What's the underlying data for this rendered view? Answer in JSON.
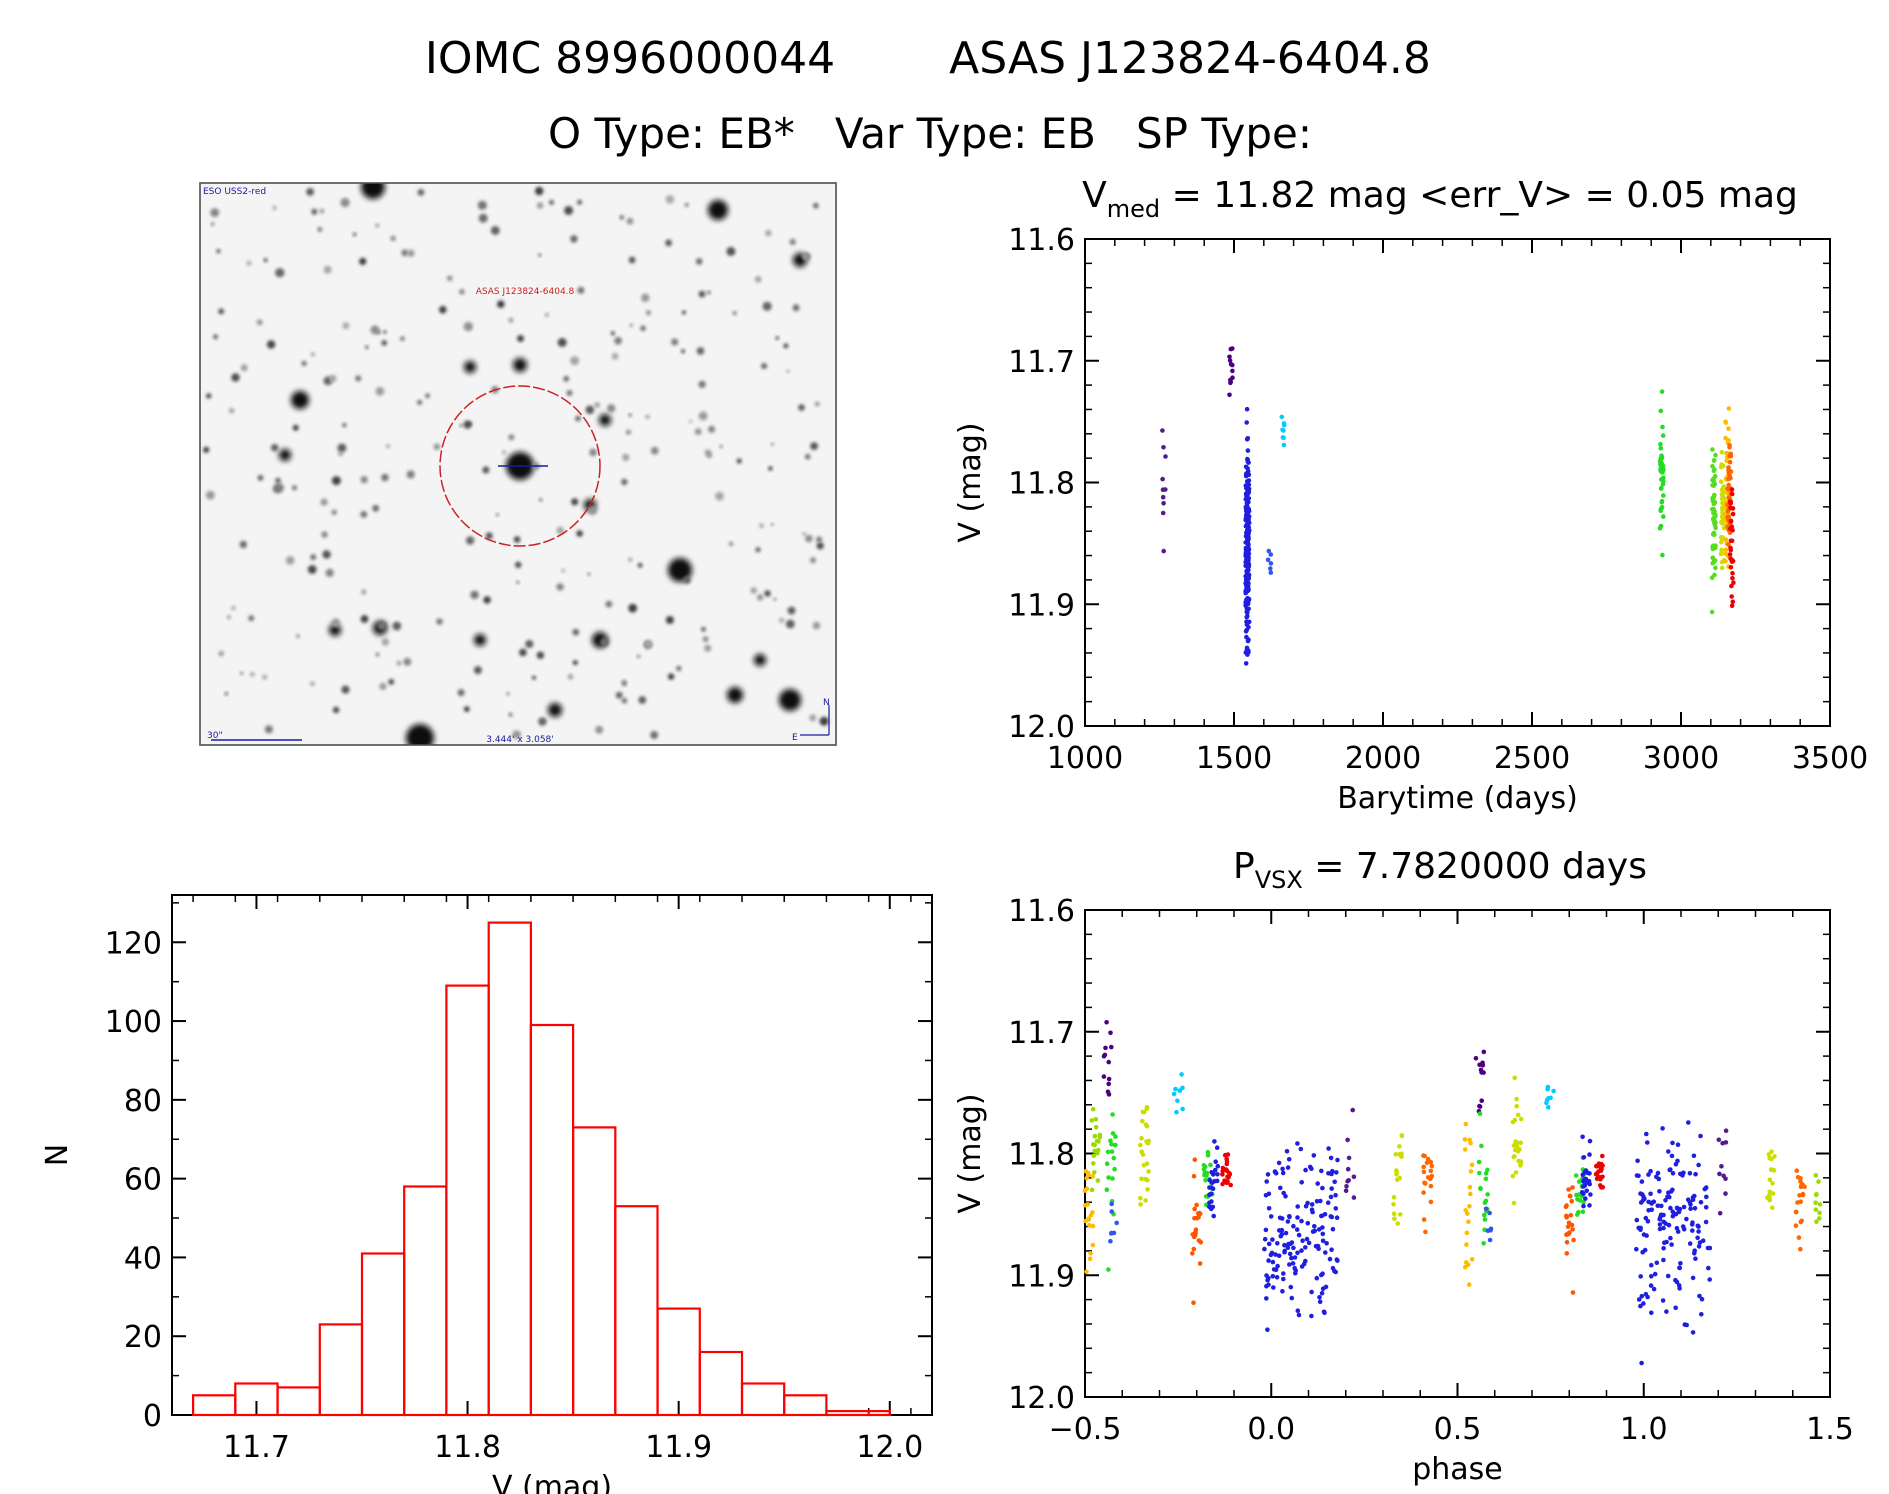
{
  "header": {
    "line1_left": "IOMC 8996000044",
    "line1_right": "ASAS J123824-6404.8",
    "line2": "O Type: EB*   Var Type: EB   SP Type:"
  },
  "image_panel": {
    "survey": "ESO USS2-red",
    "target_label": "ASAS J123824-6404.8",
    "scale_label": "30\"",
    "fov_label": "3.444' x 3.058'",
    "compass_n": "N",
    "compass_e": "E"
  },
  "colors": {
    "marker_circle": "#cc2222",
    "image_blue": "#1a1aa0",
    "hist": "#ff0000",
    "season_palette": [
      "#551a8b",
      "#4b0082",
      "#1f1fe0",
      "#00ccff",
      "#22dd22",
      "#99dd00",
      "#ffbb00",
      "#ff5500",
      "#ee0000"
    ]
  },
  "chart_data": [
    {
      "type": "scatter",
      "title": {
        "prefix": "V",
        "subscript": "med",
        "rest": " = 11.82 mag <err_V> = 0.05 mag"
      },
      "xlabel": "Barytime (days)",
      "ylabel": "V (mag)",
      "xlim": [
        1000,
        3500
      ],
      "ylim": [
        12.0,
        11.6
      ],
      "y_inverted": true,
      "xticks": [
        "1000",
        "1500",
        "2000",
        "2500",
        "3000",
        "3500"
      ],
      "yticks": [
        "11.6",
        "11.7",
        "11.8",
        "11.9",
        "12.0"
      ],
      "season_clusters": [
        {
          "x": 1265,
          "ymin": 11.72,
          "ymax": 11.89,
          "n": 10,
          "color": "#551a8b"
        },
        {
          "x": 1490,
          "ymin": 11.67,
          "ymax": 11.74,
          "n": 12,
          "color": "#4b0082"
        },
        {
          "x": 1545,
          "ymin": 11.73,
          "ymax": 11.98,
          "n": 220,
          "color": "#1f1fe0"
        },
        {
          "x": 1620,
          "ymin": 11.85,
          "ymax": 11.88,
          "n": 6,
          "color": "#3355ee"
        },
        {
          "x": 1665,
          "ymin": 11.73,
          "ymax": 11.78,
          "n": 8,
          "color": "#00ccff"
        },
        {
          "x": 2935,
          "ymin": 11.69,
          "ymax": 11.88,
          "n": 40,
          "color": "#22dd22"
        },
        {
          "x": 3110,
          "ymin": 11.72,
          "ymax": 11.92,
          "n": 60,
          "color": "#55dd22"
        },
        {
          "x": 3140,
          "ymin": 11.75,
          "ymax": 11.9,
          "n": 40,
          "color": "#ccdd00"
        },
        {
          "x": 3155,
          "ymin": 11.68,
          "ymax": 11.95,
          "n": 40,
          "color": "#ffbb00"
        },
        {
          "x": 3162,
          "ymin": 11.74,
          "ymax": 11.88,
          "n": 40,
          "color": "#ff6600"
        },
        {
          "x": 3170,
          "ymin": 11.78,
          "ymax": 11.92,
          "n": 30,
          "color": "#ee0000"
        }
      ]
    },
    {
      "type": "bar",
      "title": "",
      "xlabel": "V (mag)",
      "ylabel": "N",
      "xlim": [
        11.66,
        12.02
      ],
      "ylim": [
        0,
        132
      ],
      "xticks": [
        "11.7",
        "11.8",
        "11.9",
        "12.0"
      ],
      "yticks": [
        "0",
        "20",
        "40",
        "60",
        "80",
        "100",
        "120"
      ],
      "bin_edges": [
        11.67,
        11.69,
        11.71,
        11.73,
        11.75,
        11.77,
        11.79,
        11.81,
        11.83,
        11.85,
        11.87,
        11.89,
        11.91,
        11.93,
        11.95,
        11.97,
        11.99,
        12.0
      ],
      "values": [
        5,
        8,
        7,
        23,
        41,
        58,
        109,
        125,
        99,
        73,
        53,
        27,
        16,
        8,
        5,
        1,
        1
      ]
    },
    {
      "type": "scatter",
      "title": {
        "prefix": "P",
        "subscript": "VSX",
        "rest": " = 7.7820000 days"
      },
      "xlabel": "phase",
      "ylabel": "V (mag)",
      "xlim": [
        -0.5,
        1.5
      ],
      "ylim": [
        12.0,
        11.6
      ],
      "y_inverted": true,
      "period_days": 7.782,
      "xticks": [
        "−0.5",
        "0.0",
        "0.5",
        "1.0",
        "1.5"
      ],
      "yticks": [
        "11.6",
        "11.7",
        "11.8",
        "11.9",
        "12.0"
      ],
      "phase_clusters": [
        {
          "x": -0.49,
          "ymin": 11.73,
          "ymax": 11.95,
          "n": 20,
          "color": "#ffbb00"
        },
        {
          "x": -0.47,
          "ymin": 11.74,
          "ymax": 11.85,
          "n": 20,
          "color": "#99dd00"
        },
        {
          "x": -0.44,
          "ymin": 11.67,
          "ymax": 11.8,
          "n": 12,
          "color": "#4b0082"
        },
        {
          "x": -0.43,
          "ymin": 11.75,
          "ymax": 11.9,
          "n": 18,
          "color": "#22dd22"
        },
        {
          "x": -0.42,
          "ymin": 11.83,
          "ymax": 11.88,
          "n": 6,
          "color": "#3355ee"
        },
        {
          "x": -0.34,
          "ymin": 11.73,
          "ymax": 11.86,
          "n": 24,
          "color": "#ccdd00"
        },
        {
          "x": -0.25,
          "ymin": 11.73,
          "ymax": 11.78,
          "n": 8,
          "color": "#00ccff"
        },
        {
          "x": -0.2,
          "ymin": 11.79,
          "ymax": 11.93,
          "n": 22,
          "color": "#ff5500"
        },
        {
          "x": -0.17,
          "ymin": 11.79,
          "ymax": 11.86,
          "n": 20,
          "color": "#22dd22"
        },
        {
          "x": -0.155,
          "ymin": 11.77,
          "ymax": 11.88,
          "n": 24,
          "color": "#1f1fe0"
        },
        {
          "x": -0.12,
          "ymin": 11.79,
          "ymax": 11.84,
          "n": 20,
          "color": "#ee0000"
        },
        {
          "x": 0.08,
          "ymin": 11.75,
          "ymax": 11.98,
          "n": 160,
          "color": "#1f1fe0",
          "xspread": 0.1
        },
        {
          "x": 0.21,
          "ymin": 11.72,
          "ymax": 11.89,
          "n": 10,
          "color": "#551a8b"
        },
        {
          "x": 0.34,
          "ymin": 11.75,
          "ymax": 11.89,
          "n": 18,
          "color": "#ccdd00"
        },
        {
          "x": 0.42,
          "ymin": 11.78,
          "ymax": 11.88,
          "n": 20,
          "color": "#ff6600"
        },
        {
          "x": 0.53,
          "ymin": 11.73,
          "ymax": 11.95,
          "n": 20,
          "color": "#ffbb00"
        },
        {
          "x": 0.56,
          "ymin": 11.67,
          "ymax": 11.8,
          "n": 12,
          "color": "#4b0082"
        },
        {
          "x": 0.57,
          "ymin": 11.75,
          "ymax": 11.9,
          "n": 18,
          "color": "#22dd22"
        },
        {
          "x": 0.58,
          "ymin": 11.83,
          "ymax": 11.88,
          "n": 6,
          "color": "#3355ee"
        },
        {
          "x": 0.66,
          "ymin": 11.73,
          "ymax": 11.86,
          "n": 24,
          "color": "#ccdd00"
        },
        {
          "x": 0.75,
          "ymin": 11.73,
          "ymax": 11.78,
          "n": 8,
          "color": "#00ccff"
        },
        {
          "x": 0.8,
          "ymin": 11.79,
          "ymax": 11.93,
          "n": 22,
          "color": "#ff5500"
        },
        {
          "x": 0.83,
          "ymin": 11.79,
          "ymax": 11.86,
          "n": 20,
          "color": "#22dd22"
        },
        {
          "x": 0.845,
          "ymin": 11.77,
          "ymax": 11.88,
          "n": 24,
          "color": "#1f1fe0"
        },
        {
          "x": 0.88,
          "ymin": 11.79,
          "ymax": 11.84,
          "n": 20,
          "color": "#ee0000"
        },
        {
          "x": 1.08,
          "ymin": 11.75,
          "ymax": 11.98,
          "n": 160,
          "color": "#1f1fe0",
          "xspread": 0.1
        },
        {
          "x": 1.21,
          "ymin": 11.72,
          "ymax": 11.89,
          "n": 10,
          "color": "#551a8b"
        },
        {
          "x": 1.34,
          "ymin": 11.75,
          "ymax": 11.89,
          "n": 18,
          "color": "#ccdd00"
        },
        {
          "x": 1.42,
          "ymin": 11.78,
          "ymax": 11.88,
          "n": 20,
          "color": "#ff6600"
        },
        {
          "x": 1.47,
          "ymin": 11.8,
          "ymax": 11.88,
          "n": 10,
          "color": "#99dd00"
        }
      ]
    }
  ]
}
